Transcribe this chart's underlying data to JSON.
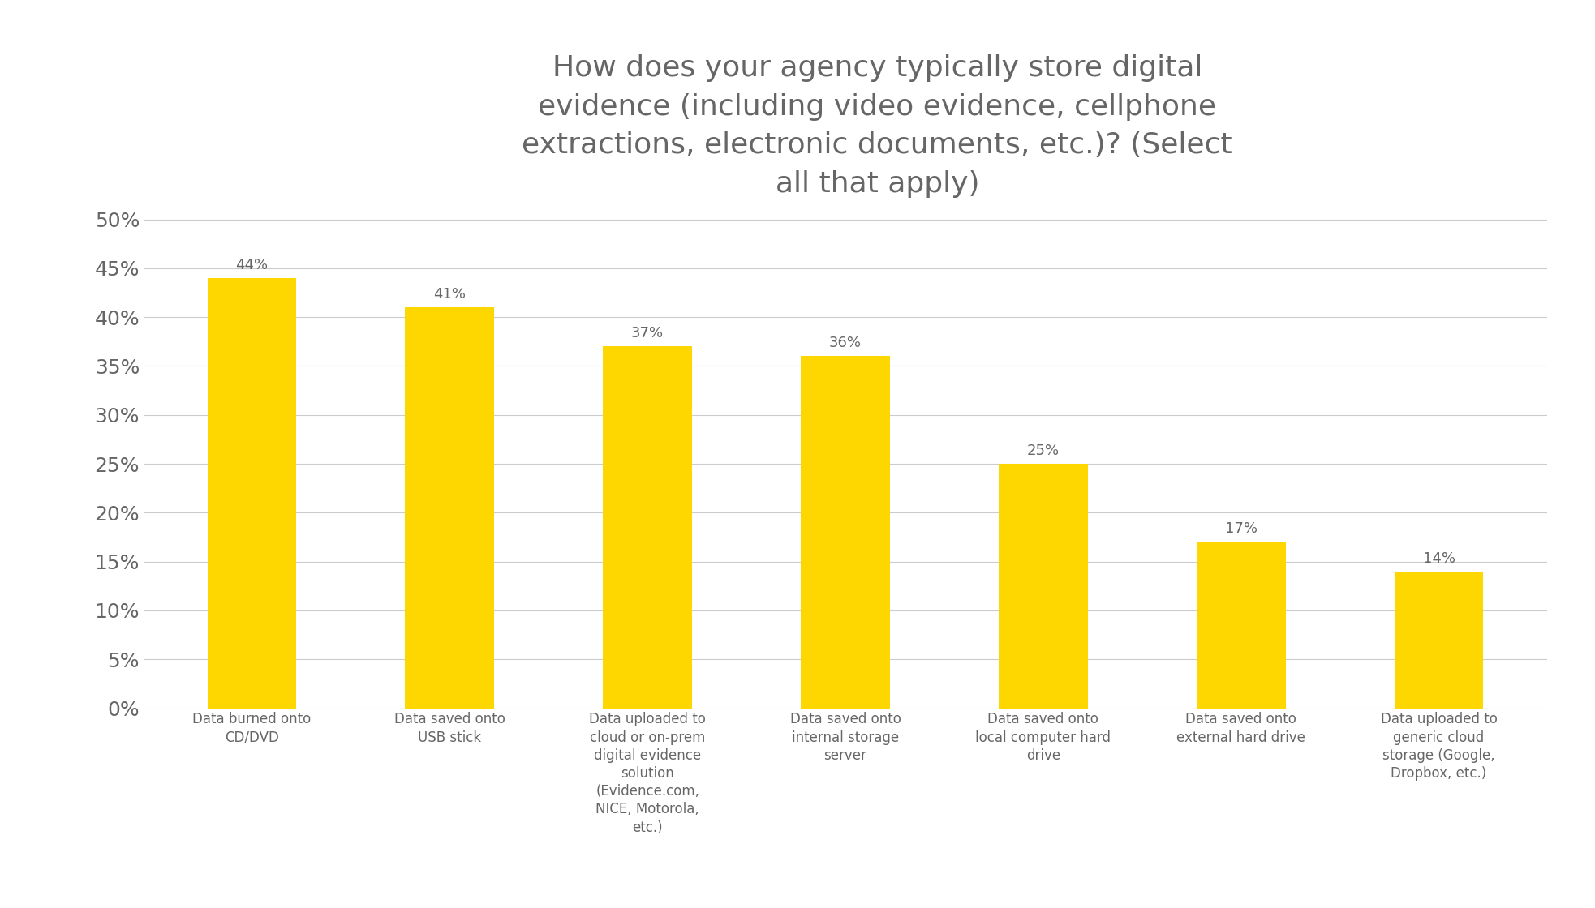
{
  "title": "How does your agency typically store digital\nevidence (including video evidence, cellphone\nextractions, electronic documents, etc.)? (Select\nall that apply)",
  "categories": [
    "Data burned onto\nCD/DVD",
    "Data saved onto\nUSB stick",
    "Data uploaded to\ncloud or on-prem\ndigital evidence\nsolution\n(Evidence.com,\nNICE, Motorola,\netc.)",
    "Data saved onto\ninternal storage\nserver",
    "Data saved onto\nlocal computer hard\ndrive",
    "Data saved onto\nexternal hard drive",
    "Data uploaded to\ngeneric cloud\nstorage (Google,\nDropbox, etc.)"
  ],
  "values": [
    44,
    41,
    37,
    36,
    25,
    17,
    14
  ],
  "bar_color": "#FFD700",
  "bar_edge_color": "#FFD700",
  "label_color": "#666666",
  "title_color": "#666666",
  "tick_color": "#666666",
  "ytick_labels": [
    "0%",
    "5%",
    "10%",
    "15%",
    "20%",
    "25%",
    "30%",
    "35%",
    "40%",
    "45%",
    "50%"
  ],
  "ytick_values": [
    0,
    5,
    10,
    15,
    20,
    25,
    30,
    35,
    40,
    45,
    50
  ],
  "ylim": [
    0,
    52
  ],
  "background_color": "#ffffff",
  "title_fontsize": 26,
  "label_fontsize": 12,
  "value_fontsize": 13,
  "tick_fontsize": 18,
  "grid_color": "#cccccc"
}
